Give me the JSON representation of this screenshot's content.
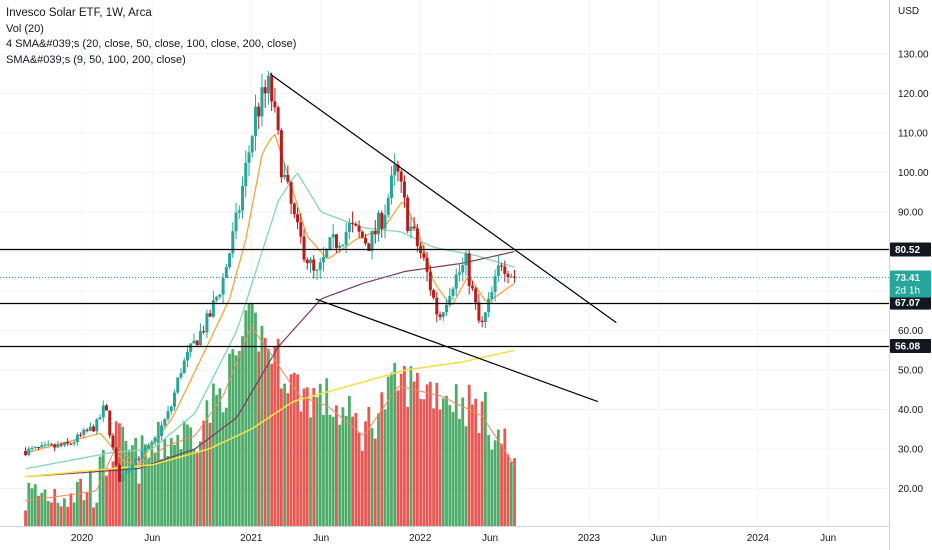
{
  "legend": {
    "title": "Invesco Solar ETF, 1W, Arca",
    "vol": "Vol (20)",
    "sma4": "4 SMA&#039;s (20, close, 50, close, 100, close, 200, close)",
    "smas": "SMA&#039;s (9, 50, 100, 200, close)"
  },
  "colors": {
    "up": "#26a69a",
    "down": "#ef5350",
    "candle_up": "#26a69a",
    "candle_down": "#b71c1c",
    "vol_up": "#2e9e4f",
    "vol_down": "#e53935",
    "sma9": "#f7a440",
    "sma50": "#8bd8b5",
    "sma100": "#7b3b5e",
    "sma200": "#f2e24a",
    "level": "#000000",
    "last": "#26a69a"
  },
  "chart_data": {
    "type": "candlestick",
    "unit": "USD",
    "y_ticks": [
      "130.00",
      "120.00",
      "110.00",
      "100.00",
      "90.00",
      "80.00",
      "70.00",
      "60.00",
      "50.00",
      "40.00",
      "30.00",
      "20.00"
    ],
    "y_tick_values": [
      130,
      120,
      110,
      100,
      90,
      80,
      70,
      60,
      50,
      40,
      30,
      20
    ],
    "x_ticks": [
      {
        "label": "2020",
        "date": "2020-01-01"
      },
      {
        "label": "Jun",
        "date": "2020-06-01"
      },
      {
        "label": "2021",
        "date": "2021-01-01"
      },
      {
        "label": "Jun",
        "date": "2021-06-01"
      },
      {
        "label": "2022",
        "date": "2022-01-01"
      },
      {
        "label": "Jun",
        "date": "2022-06-01"
      },
      {
        "label": "2023",
        "date": "2023-01-01"
      },
      {
        "label": "Jun",
        "date": "2023-06-01"
      },
      {
        "label": "2024",
        "date": "2024-01-01"
      },
      {
        "label": "Jun",
        "date": "2024-06-01"
      }
    ],
    "price_path": [
      [
        "2019-09-01",
        29.5
      ],
      [
        "2019-12-01",
        31
      ],
      [
        "2020-02-01",
        36
      ],
      [
        "2020-02-20",
        41
      ],
      [
        "2020-03-20",
        22
      ],
      [
        "2020-04-20",
        27
      ],
      [
        "2020-06-01",
        31
      ],
      [
        "2020-07-10",
        40
      ],
      [
        "2020-08-01",
        50
      ],
      [
        "2020-09-01",
        57
      ],
      [
        "2020-10-01",
        63
      ],
      [
        "2020-11-01",
        73
      ],
      [
        "2020-12-01",
        88
      ],
      [
        "2021-01-10",
        115
      ],
      [
        "2021-02-10",
        122
      ],
      [
        "2021-03-10",
        100
      ],
      [
        "2021-04-10",
        85
      ],
      [
        "2021-05-20",
        73
      ],
      [
        "2021-06-20",
        81
      ],
      [
        "2021-08-01",
        86
      ],
      [
        "2021-09-15",
        82
      ],
      [
        "2021-10-15",
        90
      ],
      [
        "2021-11-10",
        101
      ],
      [
        "2021-12-05",
        88
      ],
      [
        "2022-01-10",
        77
      ],
      [
        "2022-02-10",
        63
      ],
      [
        "2022-03-10",
        72
      ],
      [
        "2022-04-10",
        77
      ],
      [
        "2022-05-12",
        60
      ],
      [
        "2022-06-10",
        71
      ],
      [
        "2022-06-25",
        78
      ],
      [
        "2022-07-25",
        73.41
      ]
    ],
    "volume_path": [
      [
        "2019-09-01",
        15.5
      ],
      [
        "2020-02-01",
        16.5
      ],
      [
        "2020-03-15",
        21
      ],
      [
        "2020-05-01",
        19
      ],
      [
        "2020-07-01",
        21
      ],
      [
        "2020-09-01",
        22
      ],
      [
        "2020-11-01",
        26
      ],
      [
        "2021-01-01",
        33
      ],
      [
        "2021-02-15",
        30
      ],
      [
        "2021-04-15",
        26
      ],
      [
        "2021-06-15",
        25
      ],
      [
        "2021-09-01",
        22
      ],
      [
        "2021-11-15",
        27
      ],
      [
        "2022-02-15",
        26
      ],
      [
        "2022-05-15",
        24
      ],
      [
        "2022-07-25",
        19
      ]
    ],
    "sma9_path": [
      [
        "2019-09-01",
        29
      ],
      [
        "2020-02-10",
        34
      ],
      [
        "2020-03-30",
        27
      ],
      [
        "2020-05-01",
        26
      ],
      [
        "2020-07-15",
        38
      ],
      [
        "2020-09-15",
        53
      ],
      [
        "2020-11-15",
        68
      ],
      [
        "2020-12-20",
        83
      ],
      [
        "2021-01-25",
        105
      ],
      [
        "2021-02-20",
        110
      ],
      [
        "2021-03-25",
        98
      ],
      [
        "2021-05-01",
        84
      ],
      [
        "2021-06-15",
        78
      ],
      [
        "2021-08-15",
        83
      ],
      [
        "2021-10-15",
        86
      ],
      [
        "2021-11-25",
        93
      ],
      [
        "2021-12-25",
        86
      ],
      [
        "2022-02-01",
        72
      ],
      [
        "2022-03-10",
        66
      ],
      [
        "2022-04-15",
        74
      ],
      [
        "2022-05-25",
        67
      ],
      [
        "2022-07-25",
        72
      ]
    ],
    "sma50_path": [
      [
        "2019-09-01",
        25
      ],
      [
        "2020-03-01",
        29
      ],
      [
        "2020-06-01",
        30
      ],
      [
        "2020-09-01",
        39
      ],
      [
        "2020-12-01",
        60
      ],
      [
        "2021-03-01",
        93
      ],
      [
        "2021-04-10",
        100
      ],
      [
        "2021-06-01",
        90
      ],
      [
        "2021-09-01",
        86
      ],
      [
        "2021-11-20",
        85
      ],
      [
        "2022-02-01",
        81
      ],
      [
        "2022-05-01",
        79
      ],
      [
        "2022-07-25",
        76
      ]
    ],
    "sma100_path": [
      [
        "2019-09-01",
        23
      ],
      [
        "2020-05-01",
        25
      ],
      [
        "2020-09-01",
        30
      ],
      [
        "2020-12-01",
        38
      ],
      [
        "2021-03-01",
        56
      ],
      [
        "2021-06-01",
        68
      ],
      [
        "2021-09-01",
        72
      ],
      [
        "2021-12-01",
        75
      ],
      [
        "2022-04-01",
        77
      ],
      [
        "2022-07-25",
        80
      ]
    ],
    "sma200_path": [
      [
        "2019-09-01",
        23
      ],
      [
        "2020-06-01",
        26
      ],
      [
        "2020-10-01",
        30
      ],
      [
        "2021-01-01",
        35
      ],
      [
        "2021-04-01",
        42
      ],
      [
        "2021-08-01",
        46
      ],
      [
        "2021-12-01",
        50
      ],
      [
        "2022-04-01",
        52
      ],
      [
        "2022-07-25",
        55
      ]
    ],
    "trendlines": [
      {
        "from": [
          "2021-02-10",
          125
        ],
        "to": [
          "2023-03-01",
          62
        ]
      },
      {
        "from": [
          "2021-05-20",
          68
        ],
        "to": [
          "2023-01-20",
          42
        ]
      }
    ],
    "levels": [
      80.52,
      67.07,
      56.08
    ],
    "level_labels": [
      "80.52",
      "67.07",
      "56.08"
    ],
    "last_price": 73.41,
    "last_price_label": "73.41",
    "countdown_label": "2d 1h"
  }
}
